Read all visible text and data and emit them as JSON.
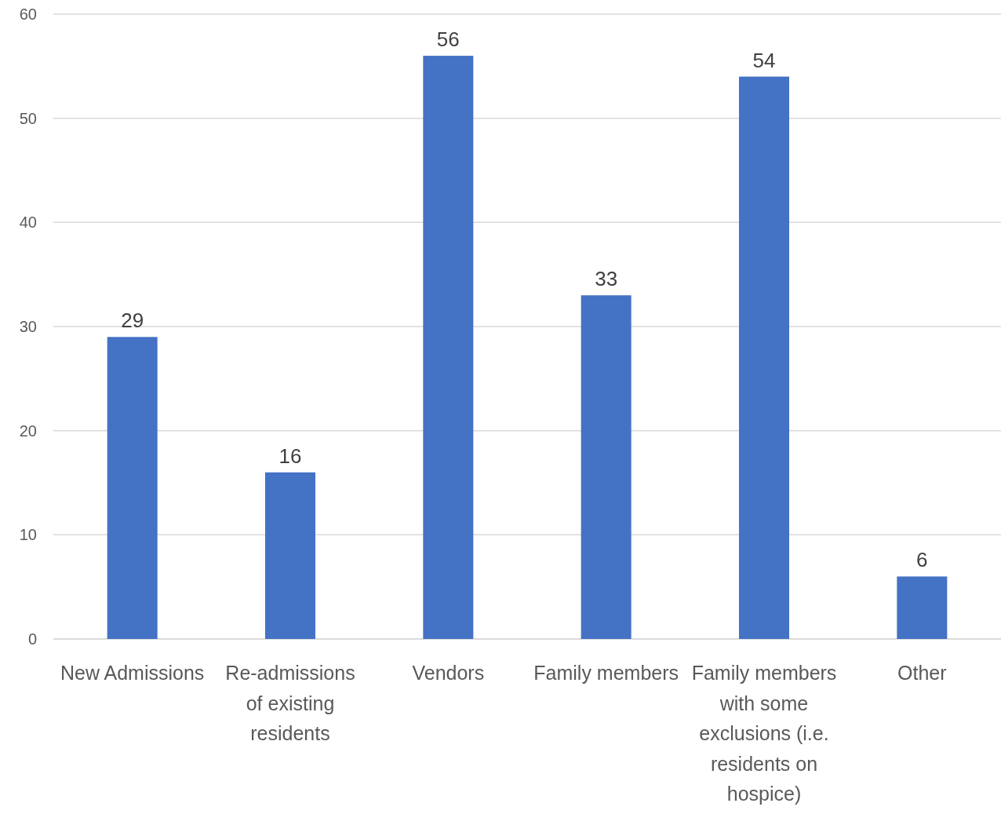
{
  "chart_data": {
    "type": "bar",
    "categories": [
      "New Admissions",
      "Re-admissions of existing residents",
      "Vendors",
      "Family members",
      "Family members with some exclusions (i.e. residents on hospice)",
      "Other"
    ],
    "values": [
      29,
      16,
      56,
      33,
      54,
      6
    ],
    "color": "#4472c4",
    "ylim": [
      0,
      60
    ],
    "yticks": [
      0,
      10,
      20,
      30,
      40,
      50,
      60
    ],
    "grid": "y",
    "data_labels": true
  }
}
